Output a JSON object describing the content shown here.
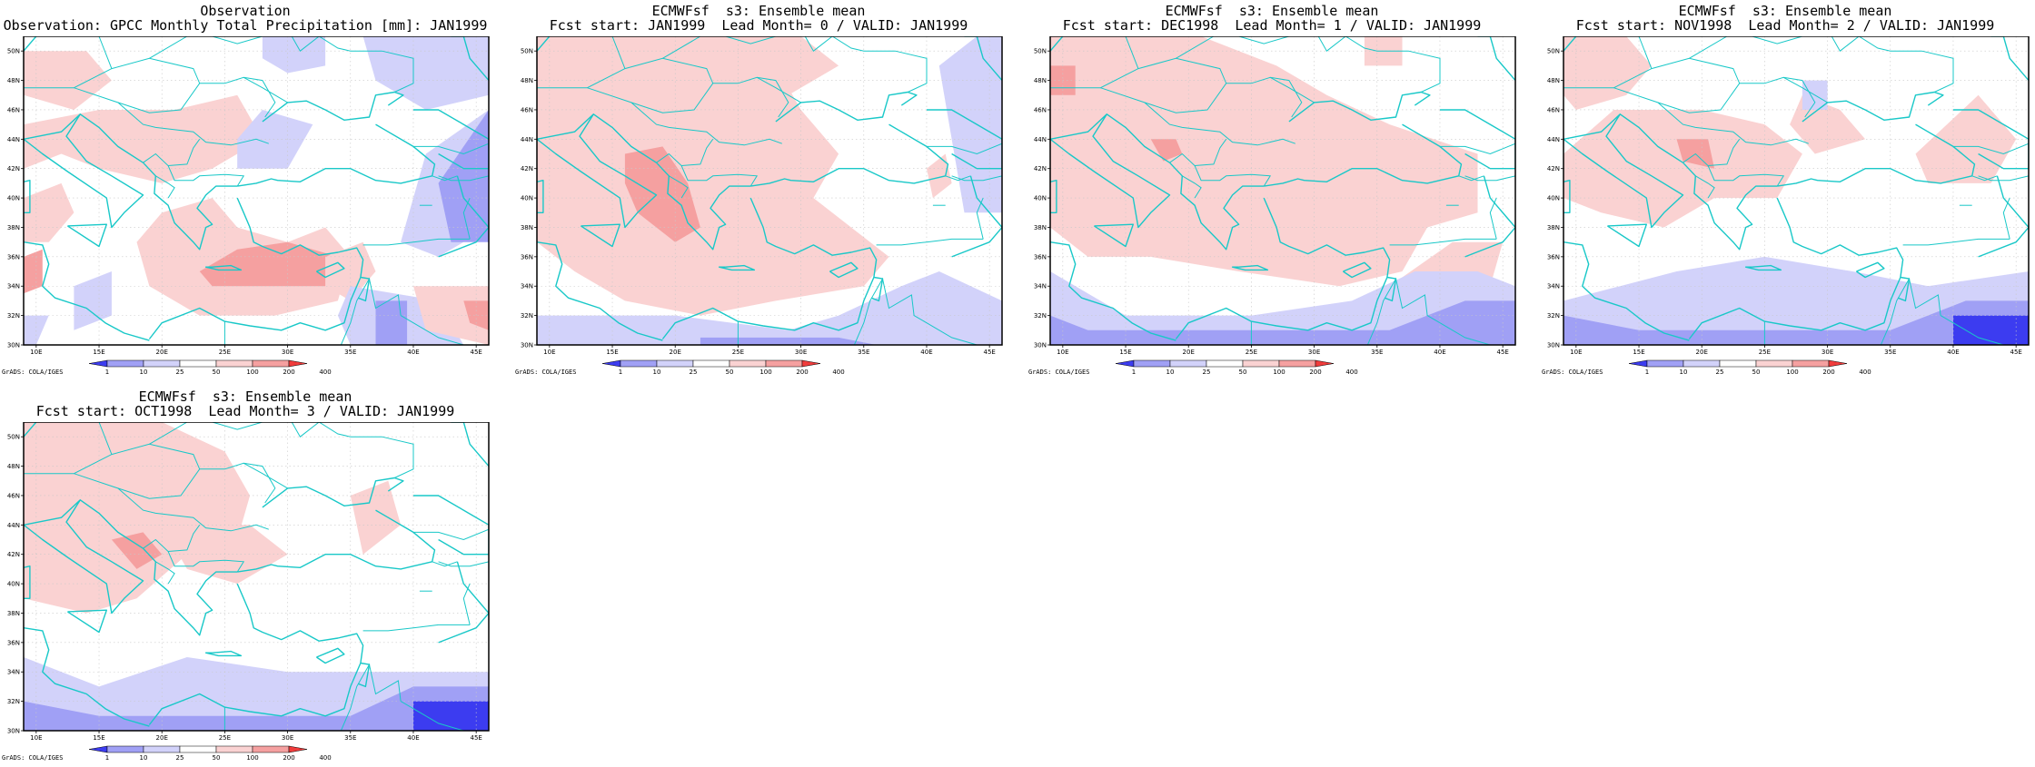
{
  "panels": [
    {
      "title": "Observation",
      "subtitle": "Observation: GPCC Monthly Total Precipitation [mm]: JAN1999",
      "variant": "obs"
    },
    {
      "title": "ECMWFsf  s3: Ensemble mean",
      "subtitle": "Fcst start: JAN1999  Lead Month= 0 / VALID: JAN1999",
      "variant": "lead0"
    },
    {
      "title": "ECMWFsf  s3: Ensemble mean",
      "subtitle": "Fcst start: DEC1998  Lead Month= 1 / VALID: JAN1999",
      "variant": "lead1"
    },
    {
      "title": "ECMWFsf  s3: Ensemble mean",
      "subtitle": "Fcst start: NOV1998  Lead Month= 2 / VALID: JAN1999",
      "variant": "lead2"
    },
    {
      "title": "ECMWFsf  s3: Ensemble mean",
      "subtitle": "Fcst start: OCT1998  Lead Month= 3 / VALID: JAN1999",
      "variant": "lead3"
    }
  ],
  "map": {
    "lon_labels": [
      "10E",
      "15E",
      "20E",
      "25E",
      "30E",
      "35E",
      "40E",
      "45E"
    ],
    "lat_labels": [
      "30N",
      "32N",
      "34N",
      "36N",
      "38N",
      "40N",
      "42N",
      "44N",
      "46N",
      "48N",
      "50N"
    ],
    "lon_range": [
      9,
      46
    ],
    "lat_range": [
      30,
      51
    ]
  },
  "colorbar": {
    "labels": [
      "1",
      "10",
      "25",
      "50",
      "100",
      "200",
      "400"
    ],
    "colors": [
      "#3c3cf0",
      "#a0a0f5",
      "#d2d2fa",
      "#ffffff",
      "#fad2d2",
      "#f5a0a0",
      "#f03c3c"
    ]
  },
  "credit": "GrADS: COLA/IGES",
  "colors": {
    "coastline": "#19c8c8",
    "blue1": "#3c3cf0",
    "blue2": "#a0a0f5",
    "blue3": "#d2d2fa",
    "red1": "#fad2d2",
    "red2": "#f5a0a0",
    "red3": "#f03c3c",
    "frame": "#000000"
  }
}
